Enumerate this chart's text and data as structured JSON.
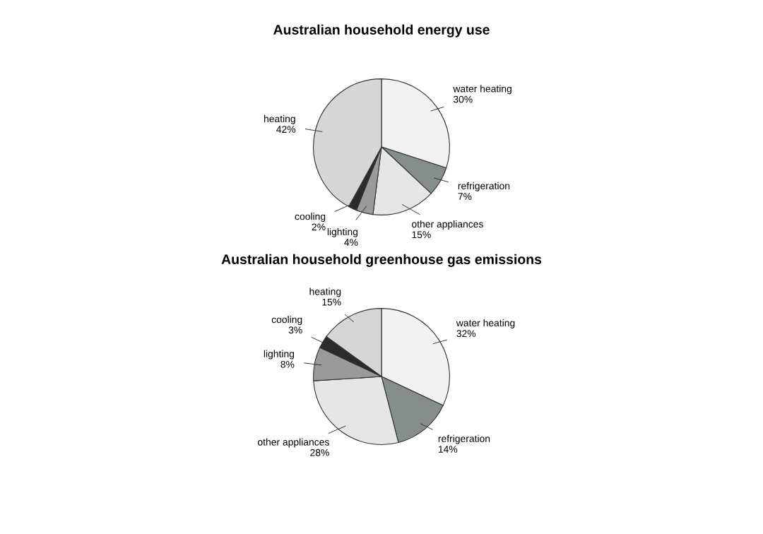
{
  "chart_data": [
    {
      "type": "pie",
      "title": "Australian household energy use",
      "categories": [
        "water heating",
        "refrigeration",
        "other appliances",
        "lighting",
        "cooling",
        "heating"
      ],
      "values": [
        30,
        7,
        15,
        4,
        2,
        42
      ],
      "value_labels": [
        "30%",
        "7%",
        "15%",
        "4%",
        "2%",
        "42%"
      ],
      "colors": [
        "#f2f2f2",
        "#858e8a",
        "#e6e6e6",
        "#9a9a9a",
        "#2b2b2b",
        "#d6d6d6"
      ]
    },
    {
      "type": "pie",
      "title": "Australian household greenhouse gas emissions",
      "categories": [
        "water heating",
        "refrigeration",
        "other appliances",
        "lighting",
        "cooling",
        "heating"
      ],
      "values": [
        32,
        14,
        28,
        8,
        3,
        15
      ],
      "value_labels": [
        "32%",
        "14%",
        "28%",
        "8%",
        "3%",
        "15%"
      ],
      "colors": [
        "#f2f2f2",
        "#858e8a",
        "#e6e6e6",
        "#9a9a9a",
        "#2b2b2b",
        "#d6d6d6"
      ]
    }
  ]
}
